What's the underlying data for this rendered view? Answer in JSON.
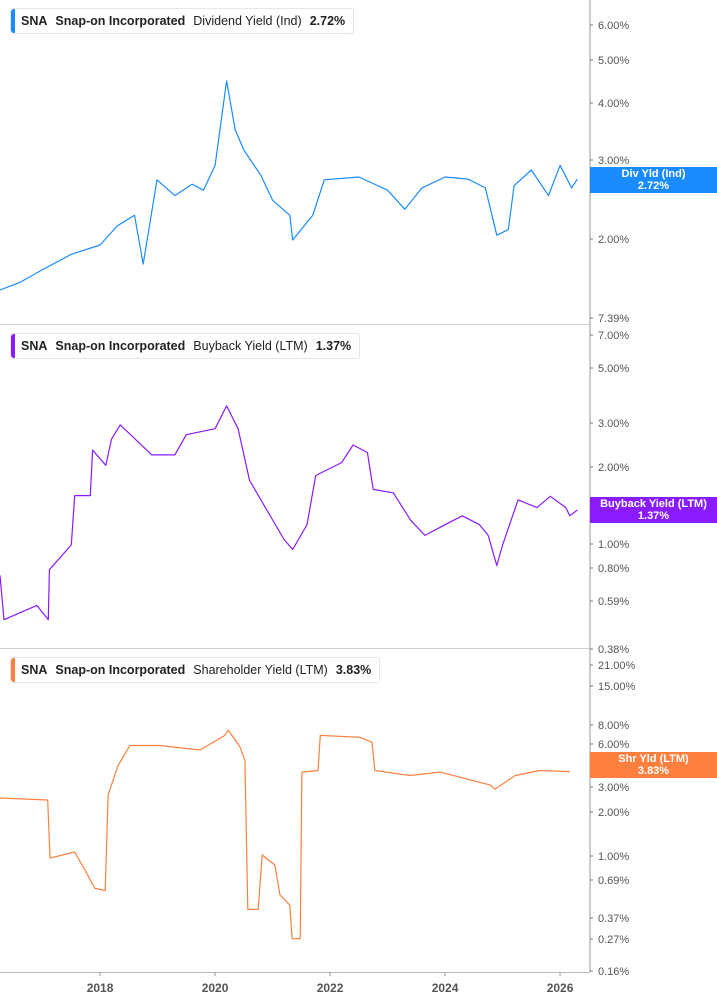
{
  "panels": [
    {
      "ticker": "SNA",
      "company": "Snap-on Incorporated",
      "metric": "Dividend Yield (Ind)",
      "value": "2.72%",
      "color": "#1a8cff",
      "tag_label": "Div Yld (Ind)",
      "tag_value": "2.72%",
      "y_ticks": [
        "6.00%",
        "5.00%",
        "4.00%",
        "3.00%",
        "2.00%",
        "7.39%"
      ]
    },
    {
      "ticker": "SNA",
      "company": "Snap-on Incorporated",
      "metric": "Buyback Yield (LTM)",
      "value": "1.37%",
      "color": "#8a1aff",
      "tag_label": "Buyback Yield (LTM)",
      "tag_value": "1.37%",
      "y_ticks": [
        "7.00%",
        "5.00%",
        "3.00%",
        "2.00%",
        "1.00%",
        "0.80%",
        "0.59%",
        "0.38%"
      ]
    },
    {
      "ticker": "SNA",
      "company": "Snap-on Incorporated",
      "metric": "Shareholder Yield (LTM)",
      "value": "3.83%",
      "color": "#ff7f3f",
      "tag_label": "Shr Yld (LTM)",
      "tag_value": "3.83%",
      "y_ticks": [
        "21.00%",
        "15.00%",
        "8.00%",
        "6.00%",
        "3.00%",
        "2.00%",
        "1.00%",
        "0.69%",
        "0.37%",
        "0.27%",
        "0.16%"
      ]
    }
  ],
  "x_ticks": [
    "2018",
    "2020",
    "2022",
    "2024",
    "2026"
  ],
  "chart_data": [
    {
      "type": "line",
      "y_scale": "log",
      "series": [
        {
          "name": "Dividend Yield (Ind)",
          "unit": "%",
          "points": [
            [
              2016.26,
              1.54
            ],
            [
              2016.6,
              1.6
            ],
            [
              2017.0,
              1.71
            ],
            [
              2017.5,
              1.85
            ],
            [
              2018.0,
              1.94
            ],
            [
              2018.3,
              2.14
            ],
            [
              2018.6,
              2.26
            ],
            [
              2018.75,
              1.76
            ],
            [
              2018.99,
              2.71
            ],
            [
              2019.3,
              2.5
            ],
            [
              2019.6,
              2.65
            ],
            [
              2019.8,
              2.57
            ],
            [
              2020.0,
              2.92
            ],
            [
              2020.2,
              4.5
            ],
            [
              2020.35,
              3.5
            ],
            [
              2020.5,
              3.16
            ],
            [
              2020.8,
              2.77
            ],
            [
              2021.0,
              2.44
            ],
            [
              2021.3,
              2.26
            ],
            [
              2021.35,
              1.99
            ],
            [
              2021.7,
              2.26
            ],
            [
              2021.9,
              2.71
            ],
            [
              2022.5,
              2.75
            ],
            [
              2023.0,
              2.57
            ],
            [
              2023.3,
              2.33
            ],
            [
              2023.6,
              2.6
            ],
            [
              2024.0,
              2.75
            ],
            [
              2024.4,
              2.72
            ],
            [
              2024.7,
              2.6
            ],
            [
              2024.9,
              2.04
            ],
            [
              2025.1,
              2.1
            ],
            [
              2025.2,
              2.63
            ],
            [
              2025.5,
              2.85
            ],
            [
              2025.8,
              2.5
            ],
            [
              2026.0,
              2.92
            ],
            [
              2026.2,
              2.6
            ],
            [
              2026.3,
              2.72
            ]
          ]
        }
      ]
    },
    {
      "type": "line",
      "y_scale": "log",
      "series": [
        {
          "name": "Buyback Yield (LTM)",
          "unit": "%",
          "points": [
            [
              2016.26,
              0.76
            ],
            [
              2016.33,
              0.51
            ],
            [
              2016.9,
              0.58
            ],
            [
              2017.1,
              0.51
            ],
            [
              2017.12,
              0.8
            ],
            [
              2017.5,
              1.0
            ],
            [
              2017.56,
              1.56
            ],
            [
              2017.83,
              1.56
            ],
            [
              2017.87,
              2.35
            ],
            [
              2018.1,
              2.05
            ],
            [
              2018.2,
              2.6
            ],
            [
              2018.35,
              2.95
            ],
            [
              2018.9,
              2.25
            ],
            [
              2019.3,
              2.25
            ],
            [
              2019.5,
              2.7
            ],
            [
              2020.0,
              2.85
            ],
            [
              2020.2,
              3.5
            ],
            [
              2020.4,
              2.85
            ],
            [
              2020.6,
              1.79
            ],
            [
              2020.9,
              1.37
            ],
            [
              2021.2,
              1.05
            ],
            [
              2021.35,
              0.96
            ],
            [
              2021.6,
              1.2
            ],
            [
              2021.75,
              1.87
            ],
            [
              2022.2,
              2.1
            ],
            [
              2022.4,
              2.46
            ],
            [
              2022.65,
              2.3
            ],
            [
              2022.75,
              1.65
            ],
            [
              2023.1,
              1.6
            ],
            [
              2023.4,
              1.25
            ],
            [
              2023.65,
              1.09
            ],
            [
              2024.0,
              1.2
            ],
            [
              2024.3,
              1.3
            ],
            [
              2024.6,
              1.2
            ],
            [
              2024.75,
              1.09
            ],
            [
              2024.9,
              0.83
            ],
            [
              2025.0,
              1.0
            ],
            [
              2025.27,
              1.5
            ],
            [
              2025.6,
              1.4
            ],
            [
              2025.83,
              1.55
            ],
            [
              2026.1,
              1.4
            ],
            [
              2026.17,
              1.3
            ],
            [
              2026.3,
              1.37
            ]
          ]
        }
      ]
    },
    {
      "type": "line",
      "y_scale": "log",
      "series": [
        {
          "name": "Shareholder Yield (LTM)",
          "unit": "%",
          "points": [
            [
              2016.26,
              2.52
            ],
            [
              2017.09,
              2.44
            ],
            [
              2017.13,
              0.97
            ],
            [
              2017.56,
              1.07
            ],
            [
              2017.74,
              0.8
            ],
            [
              2017.91,
              0.6
            ],
            [
              2018.09,
              0.58
            ],
            [
              2018.14,
              2.64
            ],
            [
              2018.31,
              4.2
            ],
            [
              2018.52,
              5.8
            ],
            [
              2019.04,
              5.8
            ],
            [
              2019.74,
              5.4
            ],
            [
              2020.17,
              6.8
            ],
            [
              2020.23,
              7.4
            ],
            [
              2020.43,
              5.7
            ],
            [
              2020.52,
              4.6
            ],
            [
              2020.57,
              0.43
            ],
            [
              2020.75,
              0.43
            ],
            [
              2020.82,
              1.02
            ],
            [
              2021.04,
              0.87
            ],
            [
              2021.13,
              0.54
            ],
            [
              2021.3,
              0.46
            ],
            [
              2021.34,
              0.27
            ],
            [
              2021.48,
              0.27
            ],
            [
              2021.51,
              3.8
            ],
            [
              2021.79,
              3.9
            ],
            [
              2021.83,
              6.8
            ],
            [
              2022.52,
              6.6
            ],
            [
              2022.73,
              6.1
            ],
            [
              2022.78,
              3.9
            ],
            [
              2023.39,
              3.6
            ],
            [
              2023.91,
              3.8
            ],
            [
              2024.78,
              3.1
            ],
            [
              2024.87,
              2.9
            ],
            [
              2025.22,
              3.6
            ],
            [
              2025.65,
              3.9
            ],
            [
              2026.17,
              3.83
            ]
          ]
        }
      ]
    }
  ]
}
